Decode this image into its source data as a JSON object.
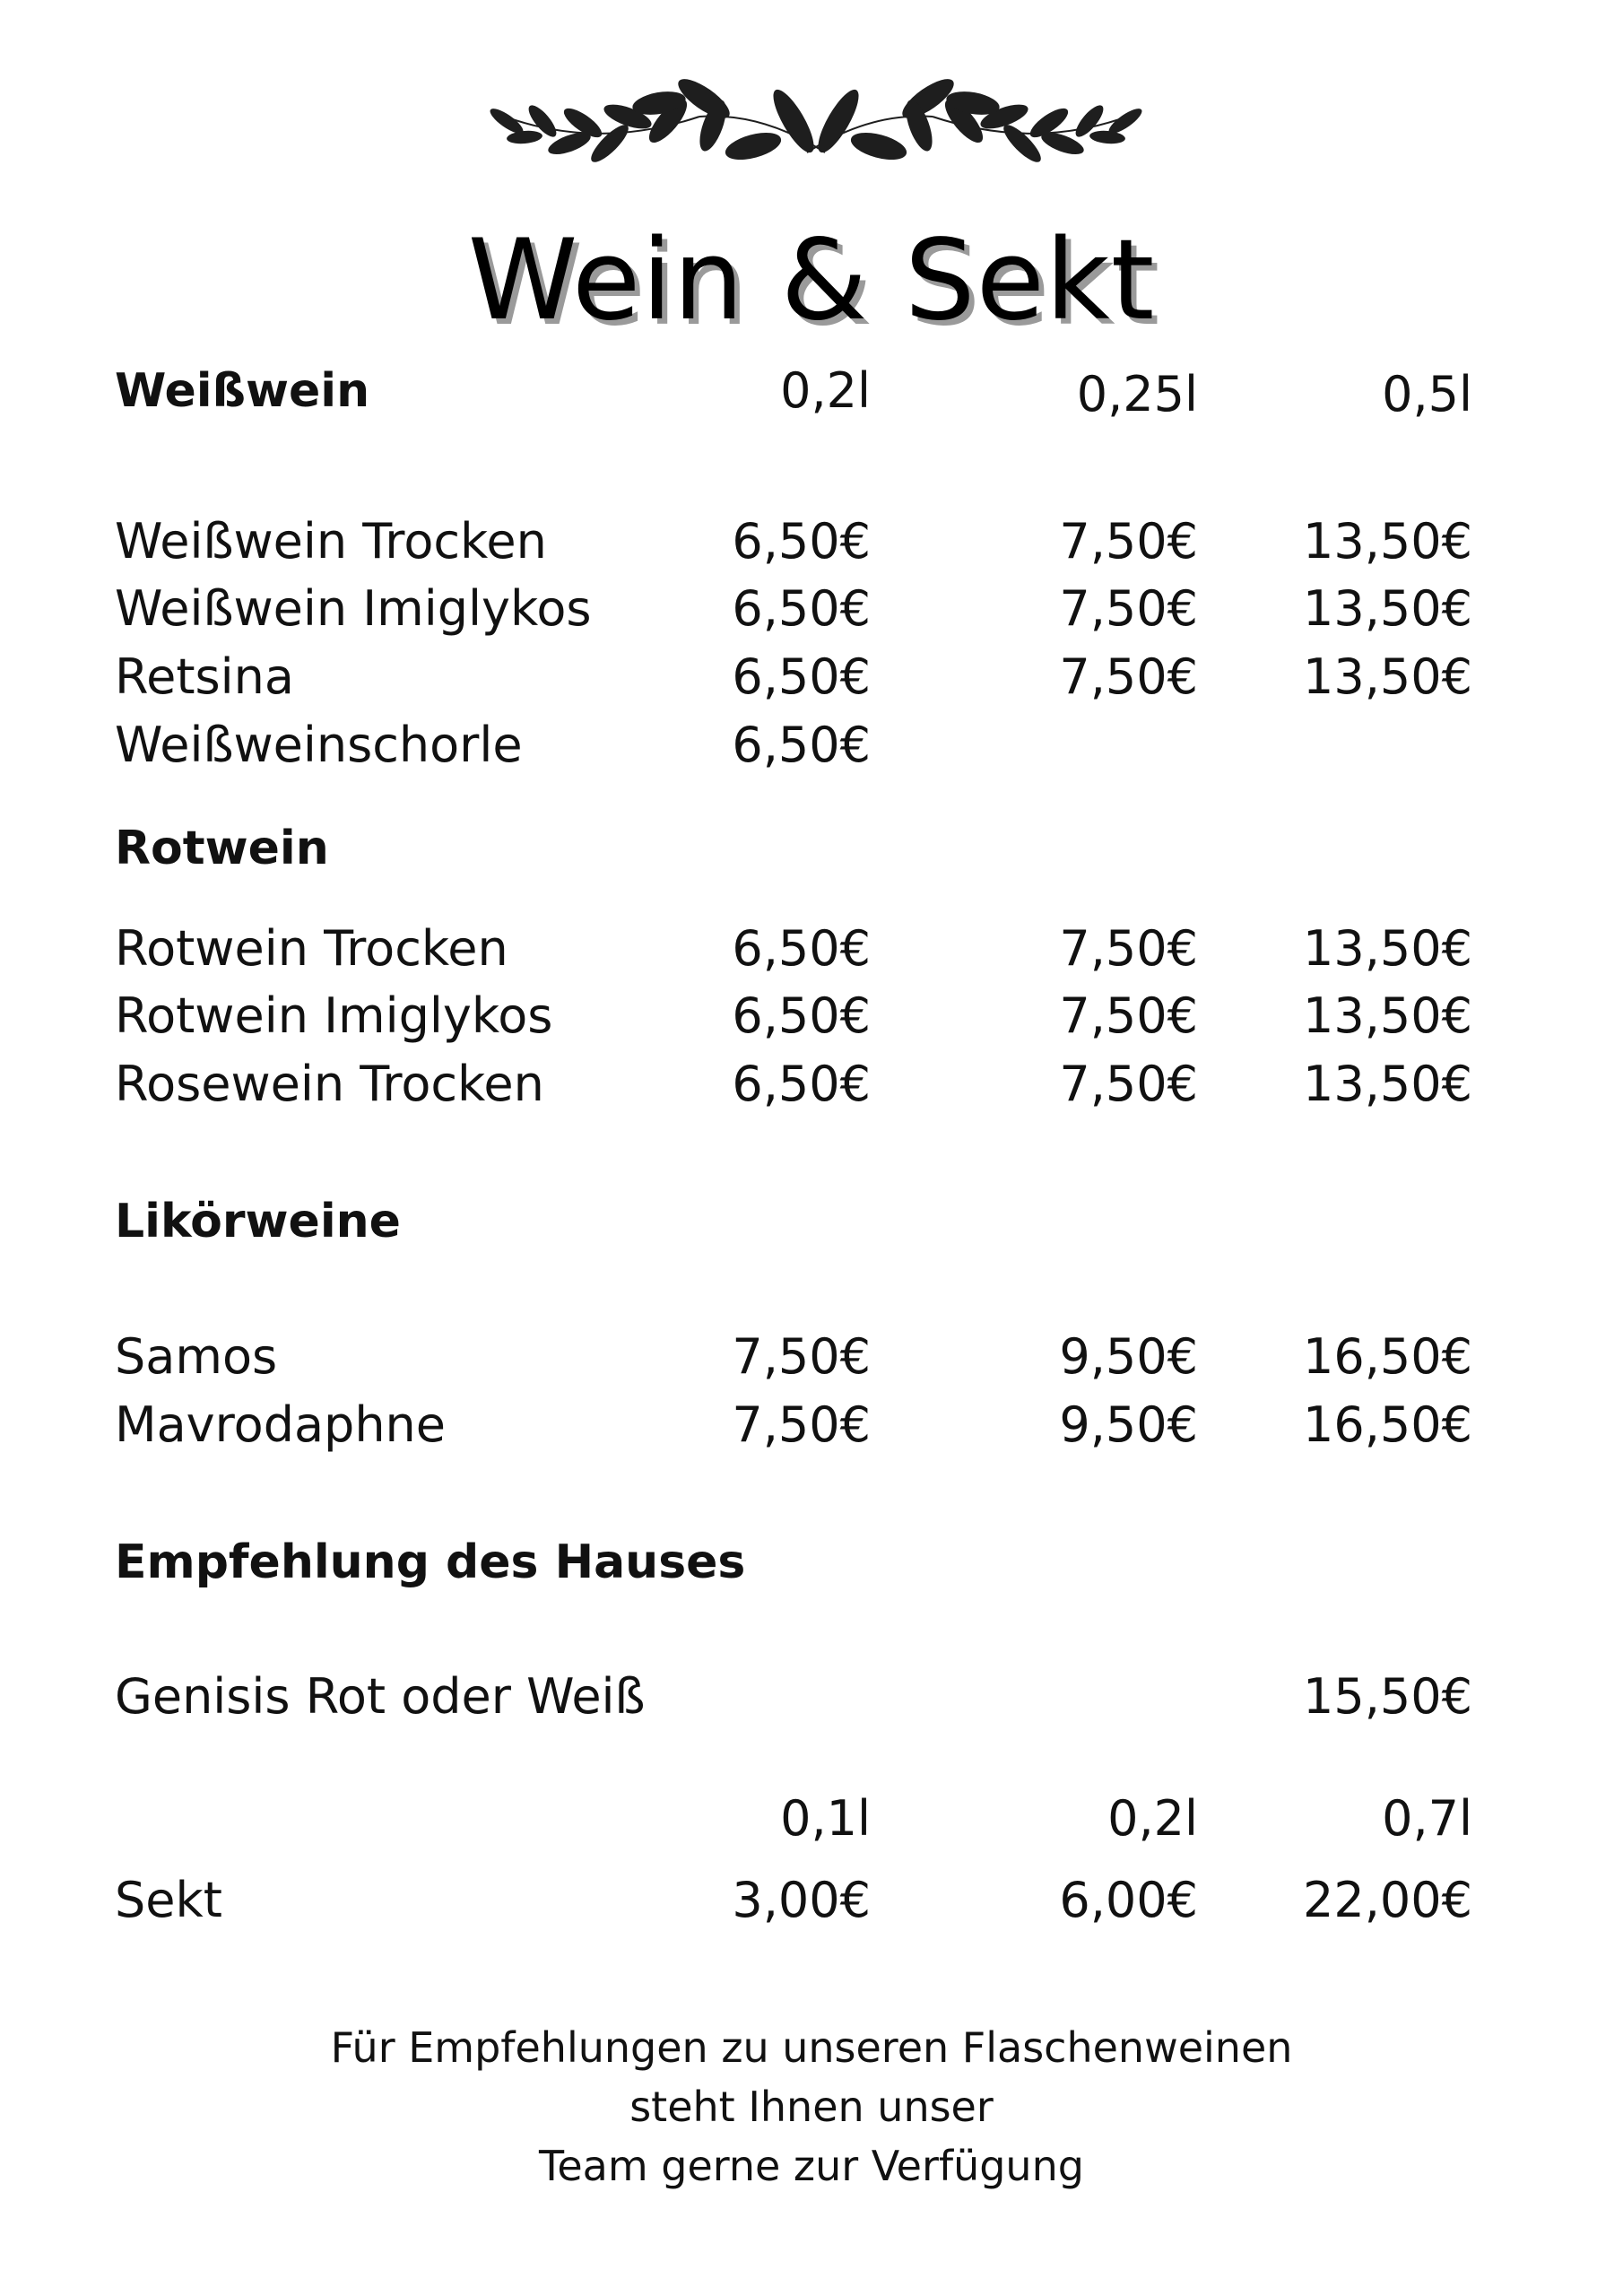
{
  "title": "Wein & Sekt",
  "decoration": "laurel-branches",
  "weisswein": {
    "heading": "Weißwein",
    "sizes": [
      "0,2l",
      "0,25l",
      "0,5l"
    ],
    "items": [
      {
        "name": "Weißwein Trocken",
        "prices": [
          "6,50€",
          "7,50€",
          "13,50€"
        ]
      },
      {
        "name": "Weißwein Imiglykos",
        "prices": [
          "6,50€",
          "7,50€",
          "13,50€"
        ]
      },
      {
        "name": "Retsina",
        "prices": [
          "6,50€",
          "7,50€",
          "13,50€"
        ]
      },
      {
        "name": "Weißweinschorle",
        "prices": [
          "6,50€"
        ]
      }
    ]
  },
  "rotwein": {
    "heading": "Rotwein",
    "items": [
      {
        "name": "Rotwein Trocken",
        "prices": [
          "6,50€",
          "7,50€",
          "13,50€"
        ]
      },
      {
        "name": "Rotwein Imiglykos",
        "prices": [
          "6,50€",
          "7,50€",
          "13,50€"
        ]
      },
      {
        "name": "Rosewein Trocken",
        "prices": [
          "6,50€",
          "7,50€",
          "13,50€"
        ]
      }
    ]
  },
  "likoerweine": {
    "heading": "Likörweine",
    "items": [
      {
        "name": "Samos",
        "prices": [
          "7,50€",
          "9,50€",
          "16,50€"
        ]
      },
      {
        "name": "Mavrodaphne",
        "prices": [
          "7,50€",
          "9,50€",
          "16,50€"
        ]
      }
    ]
  },
  "empfehlung": {
    "heading": "Empfehlung des Hauses",
    "item": {
      "name": "Genisis Rot oder Weiß",
      "price": "15,50€"
    }
  },
  "sekt": {
    "sizes": [
      "0,1l",
      "0,2l",
      "0,7l"
    ],
    "name": "Sekt",
    "prices": [
      "3,00€",
      "6,00€",
      "22,00€"
    ]
  },
  "footer": [
    "Für Empfehlungen zu unseren Flaschenweinen",
    "steht Ihnen unser",
    "Team gerne zur Verfügung"
  ]
}
